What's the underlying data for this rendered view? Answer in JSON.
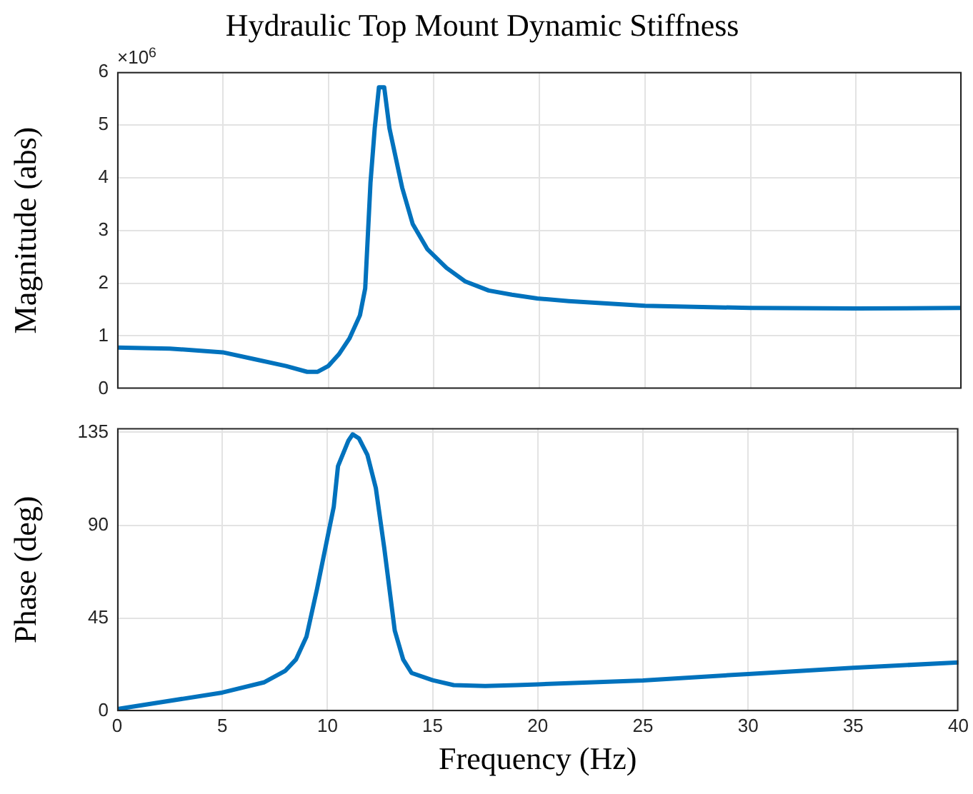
{
  "chart_data": [
    {
      "type": "line",
      "title": "Hydraulic Top Mount Dynamic Stiffness",
      "ylabel": "Magnitude (abs)",
      "annotations": [
        "×10$^{6}$"
      ],
      "x": [
        0,
        2.5,
        5,
        6.5,
        8,
        9,
        9.5,
        10,
        10.5,
        11,
        11.5,
        11.75,
        12,
        12.2,
        12.4,
        12.65,
        12.9,
        13.5,
        14,
        14.7,
        15.6,
        16.5,
        17.6,
        18.7,
        19.9,
        21.4,
        25,
        30,
        35,
        40
      ],
      "series": [
        {
          "color": "#0072bd",
          "values": [
            0.78,
            0.76,
            0.69,
            0.56,
            0.43,
            0.32,
            0.32,
            0.43,
            0.65,
            0.95,
            1.39,
            1.9,
            3.9,
            4.93,
            5.71,
            5.71,
            4.93,
            3.81,
            3.12,
            2.64,
            2.29,
            2.03,
            1.86,
            1.78,
            1.71,
            1.66,
            1.57,
            1.53,
            1.52,
            1.53
          ]
        }
      ],
      "xlim": [
        0,
        40
      ],
      "xticks": [
        0,
        5,
        10,
        15,
        20,
        25,
        30,
        35,
        40
      ],
      "ylim": [
        0,
        6
      ],
      "yticks": [
        0,
        1,
        2,
        3,
        4,
        5,
        6
      ],
      "grid": true,
      "tick_labels": "y"
    },
    {
      "type": "line",
      "xlabel": "Frequency (Hz)",
      "ylabel": "Phase (deg)",
      "x": [
        0,
        5,
        7,
        8,
        8.5,
        9,
        9.5,
        10,
        10.3,
        10.5,
        11,
        11.2,
        11.5,
        11.9,
        12.3,
        12.7,
        13.2,
        13.6,
        14,
        15,
        16,
        17.5,
        19,
        20,
        25,
        30,
        35,
        40
      ],
      "series": [
        {
          "color": "#0072bd",
          "values": [
            1,
            9,
            14,
            19.6,
            25,
            36,
            59,
            84,
            99,
            118.6,
            131,
            134,
            132,
            124,
            108,
            79,
            39,
            25,
            18.5,
            15,
            12.6,
            12.2,
            12.6,
            13,
            14.9,
            18,
            21,
            23.6
          ]
        }
      ],
      "xlim": [
        0,
        40
      ],
      "xticks": [
        0,
        5,
        10,
        15,
        20,
        25,
        30,
        35,
        40
      ],
      "ylim": [
        0,
        137
      ],
      "yticks": [
        0,
        45,
        90,
        135
      ],
      "grid": true
    }
  ]
}
